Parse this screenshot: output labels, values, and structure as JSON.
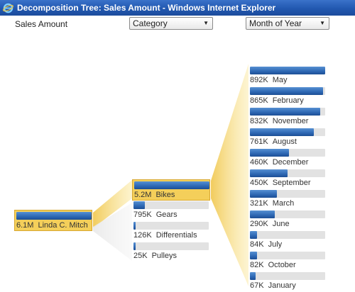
{
  "window": {
    "title": "Decomposition Tree: Sales Amount - Windows Internet Explorer"
  },
  "toolbar": {
    "measure_label": "Sales Amount",
    "dropdown_category": "Category",
    "dropdown_month": "Month of Year"
  },
  "colors": {
    "bar": "#2d67b3",
    "selected_node": "#f4cf5a",
    "connector": "#f6d978",
    "title_bar": "#2258b0"
  },
  "tree": {
    "root": {
      "value": "6.1M",
      "label": "Linda C. Mitch",
      "fill": 1.0
    },
    "level1": [
      {
        "value": "5.2M",
        "label": "Bikes",
        "fill": 1.0,
        "selected": true
      },
      {
        "value": "795K",
        "label": "Gears",
        "fill": 0.15
      },
      {
        "value": "126K",
        "label": "Differentials",
        "fill": 0.02
      },
      {
        "value": "25K",
        "label": "Pulleys",
        "fill": 0.01
      }
    ],
    "level2": [
      {
        "value": "892K",
        "label": "May",
        "fill": 1.0
      },
      {
        "value": "865K",
        "label": "February",
        "fill": 0.97
      },
      {
        "value": "832K",
        "label": "November",
        "fill": 0.93
      },
      {
        "value": "761K",
        "label": "August",
        "fill": 0.85
      },
      {
        "value": "460K",
        "label": "December",
        "fill": 0.52
      },
      {
        "value": "450K",
        "label": "September",
        "fill": 0.5
      },
      {
        "value": "321K",
        "label": "March",
        "fill": 0.36
      },
      {
        "value": "290K",
        "label": "June",
        "fill": 0.33
      },
      {
        "value": "84K",
        "label": "July",
        "fill": 0.09
      },
      {
        "value": "82K",
        "label": "October",
        "fill": 0.09
      },
      {
        "value": "67K",
        "label": "January",
        "fill": 0.08
      }
    ]
  }
}
